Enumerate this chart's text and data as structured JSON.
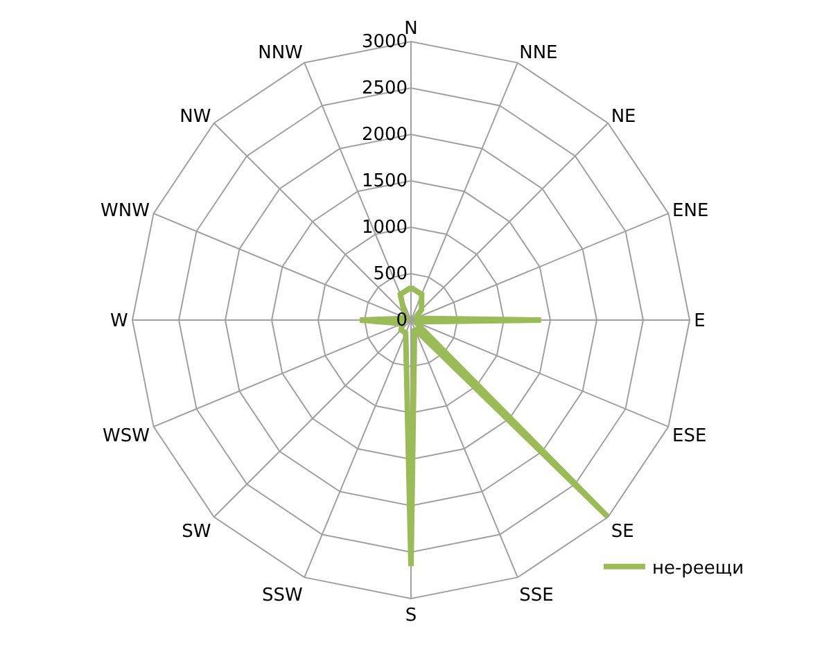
{
  "chart_data": {
    "type": "radar",
    "categories": [
      "N",
      "NNE",
      "NE",
      "ENE",
      "E",
      "ESE",
      "SE",
      "SSE",
      "S",
      "SSW",
      "SW",
      "WSW",
      "W",
      "WNW",
      "NW",
      "NNW"
    ],
    "series": [
      {
        "name": "не-реещи",
        "color": "#9bbb59",
        "values": [
          350,
          300,
          160,
          50,
          1400,
          50,
          3000,
          100,
          2650,
          150,
          150,
          100,
          550,
          50,
          100,
          300
        ]
      }
    ],
    "ylim": [
      0,
      3000
    ],
    "yticks": [
      0,
      500,
      1000,
      1500,
      2000,
      2500,
      3000
    ],
    "grid": true,
    "legend": "bottom right",
    "marker": "none",
    "line_style": "solid"
  }
}
